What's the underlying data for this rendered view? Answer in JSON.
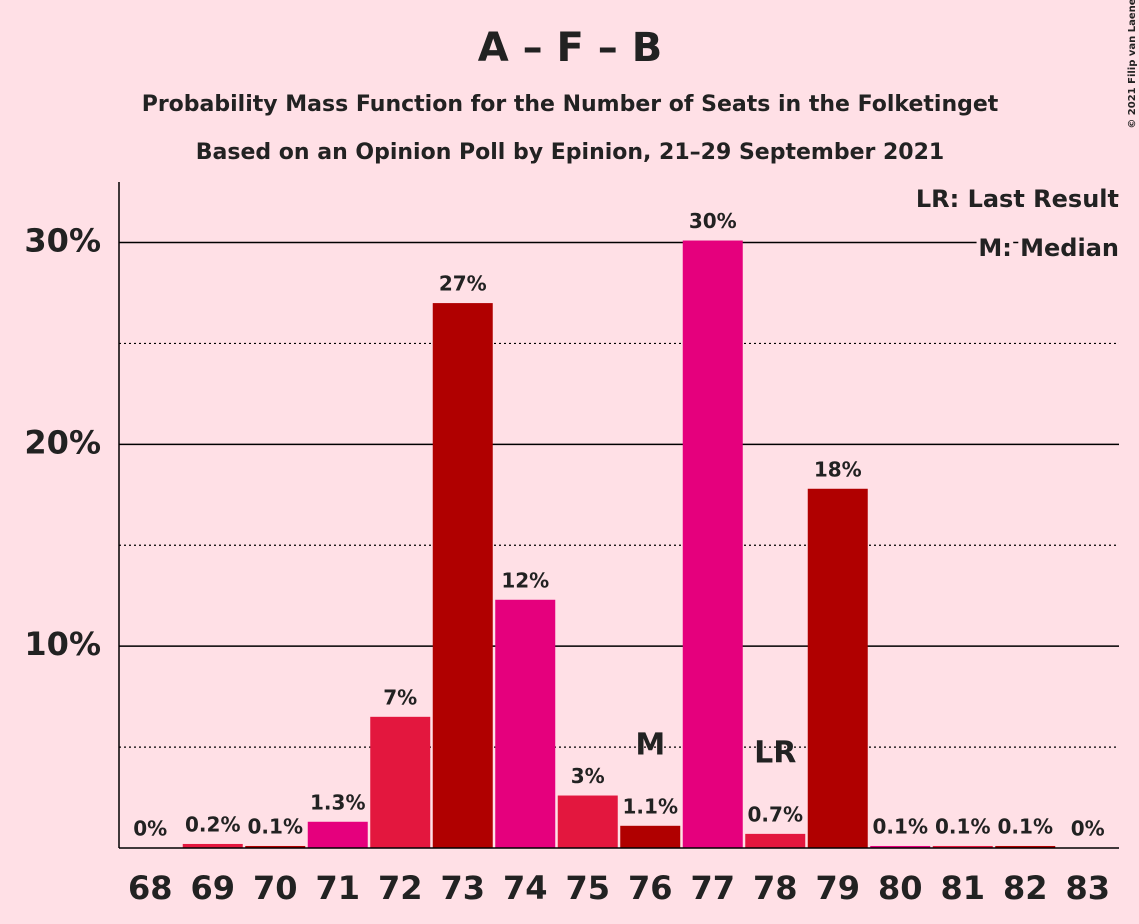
{
  "chart_data": {
    "type": "bar",
    "title": "A – F – B",
    "subtitle": "Probability Mass Function for the Number of Seats in the Folketinget",
    "subtitle2": "Based on an Opinion Poll by Epinion, 21–29 September 2021",
    "credit": "© 2021 Filip van Laenen",
    "categories": [
      "68",
      "69",
      "70",
      "71",
      "72",
      "73",
      "74",
      "75",
      "76",
      "77",
      "78",
      "79",
      "80",
      "81",
      "82",
      "83"
    ],
    "values": [
      0,
      0.2,
      0.1,
      1.3,
      6.5,
      27.0,
      12.3,
      2.6,
      1.1,
      30.1,
      0.7,
      17.8,
      0.1,
      0.1,
      0.1,
      0
    ],
    "value_labels": [
      "0%",
      "0.2%",
      "0.1%",
      "1.3%",
      "7%",
      "27%",
      "12%",
      "3%",
      "1.1%",
      "30%",
      "0.7%",
      "18%",
      "0.1%",
      "0.1%",
      "0.1%",
      "0%"
    ],
    "colors": [
      "#e5007d",
      "#e3173e",
      "#b00000",
      "#e5007d",
      "#e3173e",
      "#b00000",
      "#e5007d",
      "#e3173e",
      "#b00000",
      "#e5007d",
      "#e3173e",
      "#b00000",
      "#e5007d",
      "#e3173e",
      "#b00000",
      "#e5007d"
    ],
    "ylim": [
      0,
      33
    ],
    "yticks": [
      {
        "value": 10,
        "label": "10%"
      },
      {
        "value": 20,
        "label": "20%"
      },
      {
        "value": 30,
        "label": "30%"
      }
    ],
    "minor_grid": [
      5,
      15,
      25
    ],
    "grid": true,
    "annotations": [
      {
        "x": "76",
        "text": "M"
      },
      {
        "x": "78",
        "text": "LR"
      }
    ],
    "legend": [
      "LR: Last Result",
      "M: Median"
    ],
    "legend_position": "upper right"
  }
}
